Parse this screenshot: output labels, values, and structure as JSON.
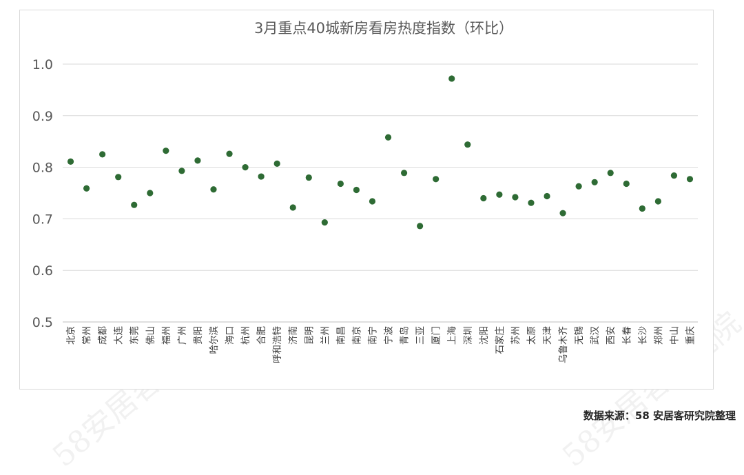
{
  "watermark": "58安居客研究院",
  "source": "数据来源：58 安居客研究院整理",
  "chart_data": {
    "type": "scatter",
    "title": "3月重点40城新房看房热度指数（环比）",
    "xlabel": "",
    "ylabel": "",
    "ylim": [
      0.5,
      1.0
    ],
    "yticks": [
      "0.5",
      "0.6",
      "0.7",
      "0.8",
      "0.9",
      "1.0"
    ],
    "grid": true,
    "legend": "none",
    "marker_color": "#2e6b34",
    "categories": [
      "北京",
      "常州",
      "成都",
      "大连",
      "东莞",
      "佛山",
      "福州",
      "广州",
      "贵阳",
      "哈尔滨",
      "海口",
      "杭州",
      "合肥",
      "呼和浩特",
      "济南",
      "昆明",
      "兰州",
      "南昌",
      "南京",
      "南宁",
      "宁波",
      "青岛",
      "三亚",
      "厦门",
      "上海",
      "深圳",
      "沈阳",
      "石家庄",
      "苏州",
      "太原",
      "天津",
      "乌鲁木齐",
      "无锡",
      "武汉",
      "西安",
      "长春",
      "长沙",
      "郑州",
      "中山",
      "重庆"
    ],
    "values": [
      0.811,
      0.759,
      0.825,
      0.781,
      0.727,
      0.75,
      0.832,
      0.793,
      0.813,
      0.757,
      0.826,
      0.8,
      0.782,
      0.807,
      0.722,
      0.78,
      0.693,
      0.768,
      0.756,
      0.734,
      0.858,
      0.789,
      0.686,
      0.777,
      0.972,
      0.844,
      0.74,
      0.747,
      0.742,
      0.731,
      0.744,
      0.711,
      0.763,
      0.771,
      0.789,
      0.768,
      0.72,
      0.734,
      0.784,
      0.777
    ]
  }
}
